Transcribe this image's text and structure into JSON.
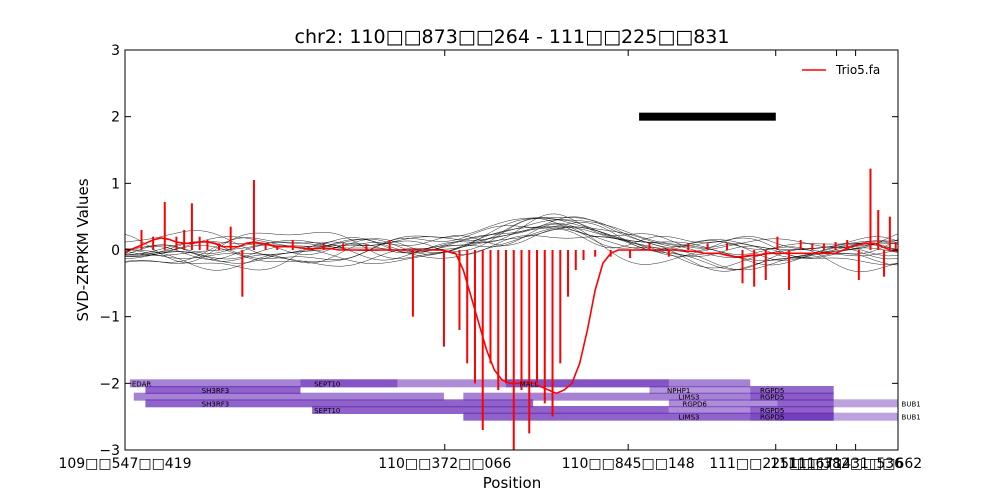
{
  "chart_data": {
    "type": "line",
    "title": "chr2: 110□□873□□264 - 111□□225□□831",
    "xlabel": "Position",
    "ylabel": "SVD-ZRPKM Values",
    "xlim": [
      109547419,
      111541000
    ],
    "ylim": [
      -3,
      3
    ],
    "x_ticks": [
      109547419,
      110372066,
      110845148,
      111225671,
      111382536,
      111431662
    ],
    "x_tick_labels": [
      "109□□547□□419",
      "110□□372□□066",
      "110□□845□□148",
      "111□□225□□671",
      "111□□382□□536",
      "111□□431□□662"
    ],
    "y_ticks": [
      -3,
      -2,
      -1,
      0,
      1,
      2,
      3
    ],
    "y_tick_labels": [
      "−3",
      "−2",
      "−1",
      "0",
      "1",
      "2",
      "3"
    ],
    "grid": false,
    "legend": {
      "position": "top-right",
      "entries": [
        {
          "name": "Trio5.fa",
          "color": "#ff0000"
        }
      ]
    },
    "highlight_bar": {
      "y": 2.0,
      "x_start": 110873264,
      "x_end": 111225831,
      "color": "#000000"
    },
    "main_series": {
      "name": "Trio5.fa",
      "color": "#ff0000",
      "x": [
        109547419,
        109560000,
        109580000,
        109600000,
        109620000,
        109640000,
        109660000,
        109680000,
        109700000,
        109720000,
        109740000,
        109760000,
        109780000,
        109800000,
        109820000,
        109840000,
        109860000,
        109880000,
        109900000,
        109920000,
        109940000,
        109960000,
        109980000,
        110000000,
        110020000,
        110040000,
        110060000,
        110080000,
        110100000,
        110120000,
        110140000,
        110160000,
        110180000,
        110200000,
        110220000,
        110240000,
        110260000,
        110280000,
        110300000,
        110320000,
        110340000,
        110360000,
        110380000,
        110400000,
        110420000,
        110440000,
        110460000,
        110480000,
        110500000,
        110520000,
        110540000,
        110560000,
        110580000,
        110600000,
        110620000,
        110640000,
        110660000,
        110680000,
        110700000,
        110720000,
        110740000,
        110760000,
        110780000,
        110800000,
        110820000,
        110840000,
        110860000,
        110880000,
        110900000,
        110920000,
        110940000,
        110960000,
        110980000,
        111000000,
        111020000,
        111040000,
        111060000,
        111080000,
        111100000,
        111120000,
        111140000,
        111160000,
        111180000,
        111200000,
        111220000,
        111240000,
        111260000,
        111280000,
        111300000,
        111320000,
        111340000,
        111360000,
        111380000,
        111400000,
        111420000,
        111440000,
        111460000,
        111480000,
        111500000,
        111520000,
        111541000
      ],
      "values": [
        -0.05,
        0.0,
        0.05,
        0.1,
        0.15,
        0.18,
        0.16,
        0.12,
        0.1,
        0.1,
        0.12,
        0.12,
        0.1,
        0.05,
        0.05,
        0.05,
        0.1,
        0.12,
        0.1,
        0.08,
        0.05,
        0.05,
        0.05,
        0.03,
        0.02,
        0.02,
        0.03,
        0.02,
        0.0,
        0.0,
        0.0,
        0.0,
        0.0,
        0.0,
        0.0,
        0.0,
        0.0,
        0.0,
        0.0,
        0.0,
        0.0,
        0.0,
        -0.02,
        -0.05,
        -0.3,
        -0.7,
        -1.1,
        -1.5,
        -1.8,
        -1.95,
        -2.0,
        -2.0,
        -1.98,
        -2.0,
        -2.05,
        -2.1,
        -2.15,
        -2.1,
        -2.0,
        -1.7,
        -1.2,
        -0.6,
        -0.2,
        -0.05,
        0.0,
        0.0,
        0.0,
        0.0,
        0.0,
        0.0,
        0.0,
        0.0,
        0.0,
        -0.02,
        -0.02,
        -0.05,
        -0.05,
        -0.05,
        -0.08,
        -0.1,
        -0.1,
        -0.08,
        -0.08,
        -0.05,
        -0.05,
        -0.05,
        -0.05,
        -0.05,
        -0.05,
        -0.05,
        -0.05,
        -0.05,
        -0.05,
        0.0,
        0.05,
        0.08,
        0.1,
        0.1,
        0.05,
        0.0,
        -0.02
      ]
    },
    "spikes": {
      "color": "#ff0000",
      "x": [
        109590000,
        109620000,
        109650000,
        109680000,
        109700000,
        109720000,
        109740000,
        109760000,
        109790000,
        109820000,
        109850000,
        109880000,
        109910000,
        109940000,
        109980000,
        110020000,
        110060000,
        110110000,
        110170000,
        110230000,
        110290000,
        110370000,
        110410000,
        110430000,
        110450000,
        110470000,
        110490000,
        110510000,
        110530000,
        110550000,
        110570000,
        110590000,
        110610000,
        110630000,
        110650000,
        110670000,
        110690000,
        110710000,
        110730000,
        110760000,
        110800000,
        110850000,
        110900000,
        110950000,
        111000000,
        111050000,
        111100000,
        111140000,
        111170000,
        111200000,
        111230000,
        111260000,
        111290000,
        111320000,
        111350000,
        111380000,
        111410000,
        111440000,
        111470000,
        111490000,
        111505000,
        111520000,
        111535000
      ],
      "values": [
        0.3,
        0.2,
        0.72,
        0.2,
        0.3,
        0.7,
        0.2,
        0.15,
        0.1,
        0.35,
        -0.7,
        1.05,
        0.1,
        0.05,
        0.15,
        0.05,
        0.1,
        0.1,
        0.08,
        0.15,
        -1.0,
        -1.45,
        -1.2,
        -1.7,
        -2.0,
        -2.7,
        -1.7,
        -2.1,
        -2.0,
        -3.0,
        -2.1,
        -2.75,
        -2.0,
        -2.3,
        -2.5,
        -1.7,
        -0.7,
        -0.3,
        -0.15,
        -0.1,
        -0.1,
        -0.12,
        0.1,
        -0.1,
        0.1,
        0.1,
        0.1,
        -0.5,
        -0.55,
        -0.45,
        0.2,
        -0.6,
        0.15,
        0.1,
        0.1,
        0.12,
        0.15,
        -0.45,
        1.22,
        0.6,
        -0.4,
        0.5,
        0.12
      ]
    },
    "background_series": [
      {
        "amp": [
          0.12,
          -0.18,
          0.28,
          0.22,
          -0.1
        ],
        "phase": 0.2
      },
      {
        "amp": [
          -0.1,
          0.2,
          0.35,
          -0.15,
          0.12
        ],
        "phase": 1.1
      },
      {
        "amp": [
          0.2,
          0.1,
          0.45,
          0.18,
          -0.2
        ],
        "phase": 2.0
      },
      {
        "amp": [
          -0.22,
          -0.12,
          0.3,
          0.25,
          0.15
        ],
        "phase": 2.7
      },
      {
        "amp": [
          0.15,
          0.25,
          0.5,
          -0.2,
          -0.25
        ],
        "phase": 3.5
      },
      {
        "amp": [
          -0.18,
          0.15,
          0.4,
          0.3,
          0.2
        ],
        "phase": 4.3
      },
      {
        "amp": [
          0.1,
          -0.25,
          0.25,
          0.1,
          0.3
        ],
        "phase": 5.0
      },
      {
        "amp": [
          0.25,
          0.05,
          0.55,
          -0.1,
          -0.15
        ],
        "phase": 5.8
      },
      {
        "amp": [
          -0.15,
          -0.2,
          0.38,
          0.2,
          0.22
        ],
        "phase": 0.7
      },
      {
        "amp": [
          0.18,
          0.22,
          0.2,
          -0.18,
          0.28
        ],
        "phase": 1.6
      },
      {
        "amp": [
          -0.08,
          0.1,
          0.48,
          0.15,
          -0.3
        ],
        "phase": 2.4
      },
      {
        "amp": [
          0.22,
          -0.15,
          0.33,
          0.28,
          0.1
        ],
        "phase": 3.1
      },
      {
        "amp": [
          -0.25,
          0.18,
          0.42,
          -0.22,
          0.18
        ],
        "phase": 3.9
      },
      {
        "amp": [
          0.12,
          0.2,
          0.52,
          0.12,
          -0.1
        ],
        "phase": 4.7
      },
      {
        "amp": [
          -0.12,
          -0.1,
          0.3,
          0.2,
          0.26
        ],
        "phase": 5.4
      },
      {
        "amp": [
          0.2,
          0.12,
          0.44,
          -0.16,
          -0.22
        ],
        "phase": 6.0
      }
    ],
    "gene_bands": [
      {
        "x_start": 109560000,
        "x_end": 110250000,
        "y": -2.0,
        "opacity": 0.6,
        "label": "EDAR",
        "label_x": 109560000
      },
      {
        "x_start": 109600000,
        "x_end": 110000000,
        "y": -2.1,
        "opacity": 0.75,
        "label": "SH3RF3",
        "label_x": 109740000
      },
      {
        "x_start": 109570000,
        "x_end": 110370000,
        "y": -2.2,
        "opacity": 0.6,
        "label": "",
        "label_x": 0
      },
      {
        "x_start": 109600000,
        "x_end": 110600000,
        "y": -2.3,
        "opacity": 0.75,
        "label": "SH3RF3",
        "label_x": 109740000
      },
      {
        "x_start": 110000000,
        "x_end": 110950000,
        "y": -2.0,
        "opacity": 0.55,
        "label": "SEPT10",
        "label_x": 110030000
      },
      {
        "x_start": 110030000,
        "x_end": 110950000,
        "y": -2.4,
        "opacity": 0.75,
        "label": "SEPT10",
        "label_x": 110030000
      },
      {
        "x_start": 110530000,
        "x_end": 111160000,
        "y": -2.0,
        "opacity": 0.6,
        "label": "MALL",
        "label_x": 110560000
      },
      {
        "x_start": 110900000,
        "x_end": 111375000,
        "y": -2.1,
        "opacity": 0.5,
        "label": "NPHP1",
        "label_x": 110940000
      },
      {
        "x_start": 110420000,
        "x_end": 111375000,
        "y": -2.2,
        "opacity": 0.6,
        "label": "LIMS3",
        "label_x": 110970000
      },
      {
        "x_start": 110950000,
        "x_end": 111375000,
        "y": -2.3,
        "opacity": 0.55,
        "label": "RGPD6",
        "label_x": 110980000
      },
      {
        "x_start": 110420000,
        "x_end": 111375000,
        "y": -2.5,
        "opacity": 0.75,
        "label": "LIMS3",
        "label_x": 110970000
      },
      {
        "x_start": 110950000,
        "x_end": 111375000,
        "y": -2.4,
        "opacity": 0.55,
        "label": "",
        "label_x": 0
      },
      {
        "x_start": 111160000,
        "x_end": 111375000,
        "y": -2.1,
        "opacity": 0.45,
        "label": "RGPD5",
        "label_x": 111180000
      },
      {
        "x_start": 111160000,
        "x_end": 111375000,
        "y": -2.2,
        "opacity": 0.45,
        "label": "RGPD5",
        "label_x": 111180000
      },
      {
        "x_start": 111160000,
        "x_end": 111375000,
        "y": -2.4,
        "opacity": 0.45,
        "label": "RGPD5",
        "label_x": 111180000
      },
      {
        "x_start": 111160000,
        "x_end": 111375000,
        "y": -2.5,
        "opacity": 0.45,
        "label": "RGPD5",
        "label_x": 111180000
      },
      {
        "x_start": 111230000,
        "x_end": 111541000,
        "y": -2.3,
        "opacity": 0.45,
        "label": "BUB1",
        "label_x": 111545000
      },
      {
        "x_start": 111230000,
        "x_end": 111541000,
        "y": -2.5,
        "opacity": 0.45,
        "label": "BUB1",
        "label_x": 111545000
      }
    ],
    "colors": {
      "background_line": "#000000",
      "gene_band": "#6a2fb8",
      "axes": "#000000"
    }
  }
}
